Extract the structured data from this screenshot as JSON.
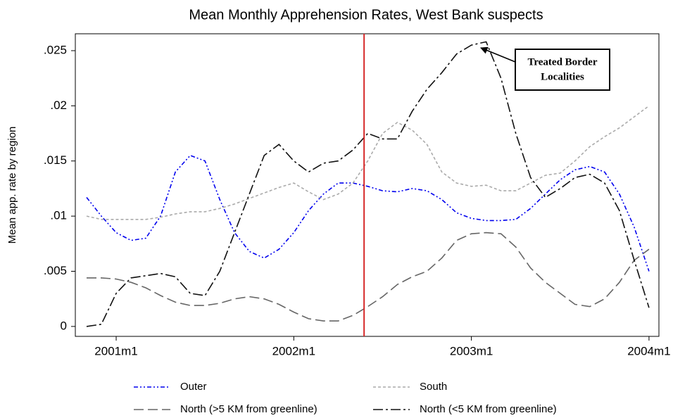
{
  "chart_data": {
    "type": "line",
    "title": "Mean Monthly Apprehension Rates, West Bank suspects",
    "y_label": "Mean app. rate by region",
    "x": [
      490,
      491,
      492,
      493,
      494,
      495,
      496,
      497,
      498,
      499,
      500,
      501,
      502,
      503,
      504,
      505,
      506,
      507,
      508,
      509,
      510,
      511,
      512,
      513,
      514,
      515,
      516,
      517,
      518,
      519,
      520,
      521,
      522,
      523,
      524,
      525,
      526,
      527,
      528
    ],
    "xlim": [
      489.24,
      528.67
    ],
    "xticks": [
      {
        "value": 492,
        "label": "2001m1"
      },
      {
        "value": 504,
        "label": "2002m1"
      },
      {
        "value": 516,
        "label": "2003m1"
      },
      {
        "value": 528,
        "label": "2004m1"
      }
    ],
    "ylim": [
      -0.0009,
      0.02653
    ],
    "yticks": [
      0,
      {
        "value": 0.005,
        "label": ".005"
      },
      {
        "value": 0.01,
        "label": ".01"
      },
      {
        "value": 0.015,
        "label": ".015"
      },
      {
        "value": 0.02,
        "label": ".02"
      },
      {
        "value": 0.025,
        "label": ".025"
      }
    ],
    "vline": {
      "value": 508.75,
      "color": "#d62728"
    },
    "annotation": {
      "lines": [
        "Treated Border",
        "Localities"
      ]
    },
    "series": [
      {
        "name": "Outer",
        "color": "#0000ee",
        "dash": "6 3 2 3 2 3",
        "values": [
          0.0117,
          0.01,
          0.0085,
          0.0078,
          0.008,
          0.01,
          0.014,
          0.0155,
          0.015,
          0.0115,
          0.0085,
          0.0068,
          0.0062,
          0.007,
          0.0085,
          0.0105,
          0.012,
          0.013,
          0.013,
          0.0127,
          0.0123,
          0.0122,
          0.0125,
          0.0123,
          0.0115,
          0.0103,
          0.0098,
          0.0096,
          0.0096,
          0.0097,
          0.0107,
          0.012,
          0.0133,
          0.0142,
          0.0145,
          0.014,
          0.012,
          0.009,
          0.005
        ]
      },
      {
        "name": "South",
        "color": "#aaaaaa",
        "dash": "4 3",
        "values": [
          0.01,
          0.0097,
          0.0097,
          0.0097,
          0.0097,
          0.0099,
          0.0102,
          0.0104,
          0.0104,
          0.0107,
          0.0111,
          0.0116,
          0.0121,
          0.0126,
          0.013,
          0.0122,
          0.0115,
          0.012,
          0.013,
          0.015,
          0.0175,
          0.0185,
          0.0178,
          0.0165,
          0.014,
          0.013,
          0.0127,
          0.0128,
          0.0123,
          0.0123,
          0.013,
          0.0137,
          0.0139,
          0.015,
          0.0163,
          0.0172,
          0.018,
          0.019,
          0.02
        ]
      },
      {
        "name": "North (>5 KM from greenline)",
        "color": "#666666",
        "dash": "14 6",
        "values": [
          0.0044,
          0.0044,
          0.0043,
          0.004,
          0.0035,
          0.0028,
          0.0022,
          0.0019,
          0.0019,
          0.0021,
          0.0025,
          0.0027,
          0.0025,
          0.002,
          0.0013,
          0.0007,
          0.0005,
          0.0005,
          0.001,
          0.0018,
          0.0027,
          0.0038,
          0.0045,
          0.005,
          0.0062,
          0.0078,
          0.0084,
          0.0085,
          0.0084,
          0.0072,
          0.0053,
          0.004,
          0.003,
          0.002,
          0.0018,
          0.0025,
          0.004,
          0.006,
          0.007
        ]
      },
      {
        "name": "North (<5 KM from greenline)",
        "color": "#111111",
        "dash": "14 4 3 4",
        "values": [
          0,
          0.0002,
          0.003,
          0.0044,
          0.0046,
          0.0048,
          0.0045,
          0.003,
          0.0028,
          0.005,
          0.0085,
          0.012,
          0.0155,
          0.0165,
          0.015,
          0.014,
          0.0148,
          0.015,
          0.016,
          0.0175,
          0.017,
          0.017,
          0.0195,
          0.0215,
          0.023,
          0.0247,
          0.0255,
          0.0258,
          0.0225,
          0.0175,
          0.0135,
          0.0117,
          0.0125,
          0.0135,
          0.0138,
          0.013,
          0.0105,
          0.006,
          0.0017
        ]
      }
    ]
  }
}
